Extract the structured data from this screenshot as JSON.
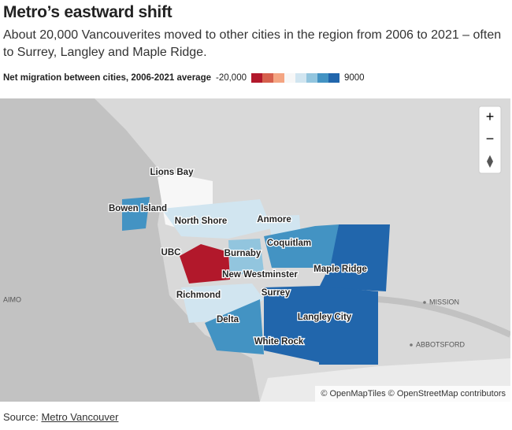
{
  "header": {
    "title": "Metro’s eastward shift",
    "subtitle": "About 20,000 Vancouverites moved to other cities in the region from 2006 to 2021 – often to Surrey, Langley and Maple Ridge."
  },
  "legend": {
    "title": "Net migration between cities, 2006-2021 average",
    "min": "-20,000",
    "max": "9000",
    "colors": [
      "#b2182b",
      "#d6604d",
      "#f4a582",
      "#f7f7f7",
      "#d1e5f0",
      "#92c5de",
      "#4393c3",
      "#2166ac"
    ]
  },
  "map": {
    "labels": [
      "Lions Bay",
      "Bowen Island",
      "North Shore",
      "Anmore",
      "UBC",
      "Burnaby",
      "Coquitlam",
      "Maple Ridge",
      "New Westminster",
      "Richmond",
      "Surrey",
      "Delta",
      "Langley City",
      "White Rock"
    ],
    "places": [
      "MISSION",
      "ABBOTSFORD",
      "AIMO"
    ],
    "controls": {
      "zoom_in": "+",
      "zoom_out": "−"
    },
    "attribution": "© OpenMapTiles © OpenStreetMap contributors"
  },
  "footer": {
    "source_label": "Source:",
    "source_link": "Metro Vancouver"
  }
}
